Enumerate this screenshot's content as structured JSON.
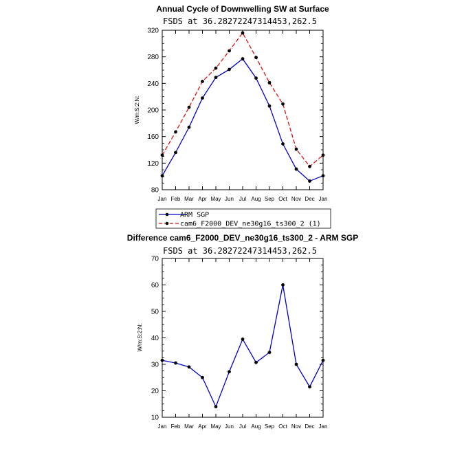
{
  "chart_data": [
    {
      "type": "line",
      "title": "Annual Cycle of Downwelling SW at Surface",
      "subtitle": "FSDS at 36.28272247314453,262.5",
      "ylabel": "W/m:S:2:N:",
      "xlabel": "",
      "categories": [
        "Jan",
        "Feb",
        "Mar",
        "Apr",
        "May",
        "Jun",
        "Jul",
        "Aug",
        "Sep",
        "Oct",
        "Nov",
        "Dec",
        "Jan"
      ],
      "ylim": [
        80,
        320
      ],
      "yticks": [
        80,
        120,
        160,
        200,
        240,
        280,
        320
      ],
      "grid": false,
      "legend_position": "below",
      "series": [
        {
          "name": "ARM SGP",
          "color": "#0000cc",
          "dash": "solid",
          "values": [
            101,
            136,
            174,
            218,
            249,
            261,
            277,
            248,
            206,
            149,
            111,
            93,
            101
          ]
        },
        {
          "name": "cam6_F2000_DEV_ne30g16_ts300_2 (1)",
          "color": "#dd1111",
          "dash": "dashed",
          "values": [
            132,
            167,
            204,
            243,
            263,
            289,
            316,
            279,
            241,
            209,
            141,
            115,
            132
          ]
        }
      ]
    },
    {
      "type": "line",
      "title": "Difference cam6_F2000_DEV_ne30g16_ts300_2 - ARM SGP",
      "subtitle": "FSDS at 36.28272247314453,262.5",
      "ylabel": "W/m:S:2:N:",
      "xlabel": "",
      "categories": [
        "Jan",
        "Feb",
        "Mar",
        "Apr",
        "May",
        "Jun",
        "Jul",
        "Aug",
        "Sep",
        "Oct",
        "Nov",
        "Dec",
        "Jan"
      ],
      "ylim": [
        10,
        70
      ],
      "yticks": [
        10,
        20,
        30,
        40,
        50,
        60,
        70
      ],
      "grid": false,
      "series": [
        {
          "name": "",
          "color": "#0000cc",
          "dash": "solid",
          "values": [
            31.5,
            30.5,
            29,
            25,
            14,
            27.2,
            39.5,
            30.7,
            34.5,
            60,
            30,
            21.5,
            31.5
          ]
        }
      ]
    }
  ]
}
